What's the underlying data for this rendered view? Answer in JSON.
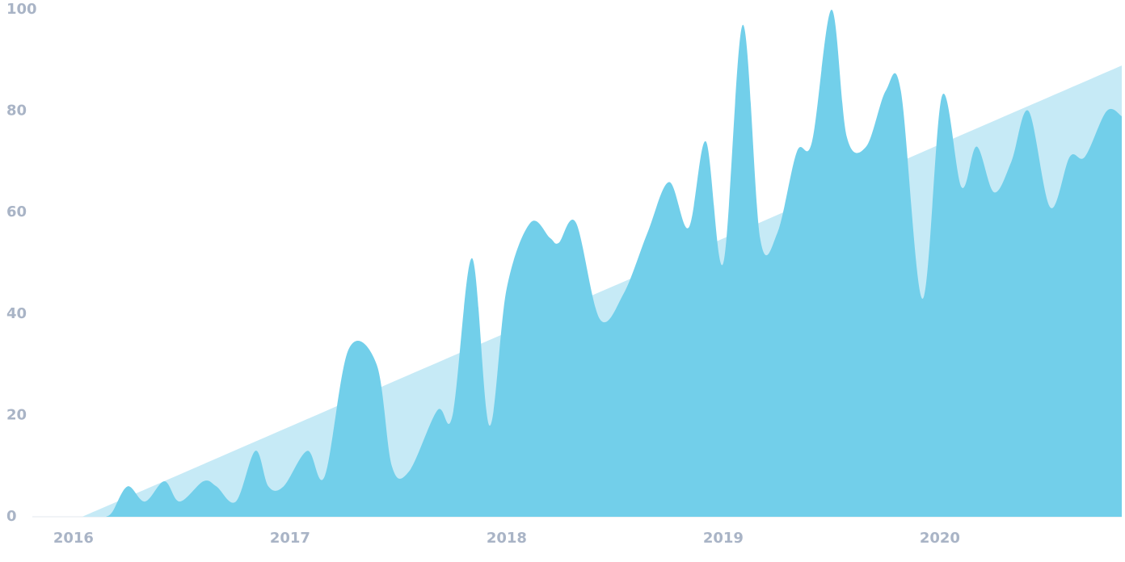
{
  "chart_data": {
    "type": "area",
    "series": [
      {
        "color": "#c6eaf6",
        "x": [
          2016.04,
          2020.84
        ],
        "values": [
          0,
          89
        ]
      },
      {
        "color": "#72cfea",
        "x": [
          2016.15,
          2016.18,
          2016.25,
          2016.33,
          2016.42,
          2016.49,
          2016.6,
          2016.66,
          2016.75,
          2016.84,
          2016.9,
          2016.97,
          2017.08,
          2017.16,
          2017.27,
          2017.4,
          2017.47,
          2017.55,
          2017.68,
          2017.75,
          2017.84,
          2017.92,
          2018.0,
          2018.11,
          2018.2,
          2018.24,
          2018.32,
          2018.43,
          2018.54,
          2018.65,
          2018.75,
          2018.84,
          2018.92,
          2019.0,
          2019.09,
          2019.17,
          2019.25,
          2019.34,
          2019.41,
          2019.5,
          2019.57,
          2019.66,
          2019.75,
          2019.82,
          2019.92,
          2020.01,
          2020.1,
          2020.17,
          2020.25,
          2020.33,
          2020.41,
          2020.51,
          2020.6,
          2020.67,
          2020.77,
          2020.84
        ],
        "values": [
          0,
          1,
          6,
          3,
          7,
          3,
          7,
          6,
          3,
          13,
          6,
          6,
          13,
          8,
          33,
          30,
          10,
          9,
          21,
          20,
          51,
          18,
          45,
          58,
          55,
          54,
          58,
          39,
          44,
          56,
          66,
          57,
          74,
          50,
          97,
          55,
          56,
          72,
          74,
          100,
          75,
          73,
          84,
          84,
          43,
          83,
          65,
          73,
          64,
          70,
          80,
          61,
          71,
          71,
          80,
          79
        ]
      }
    ],
    "xlim": [
      2015.81,
      2020.84
    ],
    "xticks": [
      2016,
      2017,
      2018,
      2019,
      2020
    ],
    "ylim": [
      0,
      100
    ],
    "yticks": [
      0,
      20,
      40,
      60,
      80,
      100
    ]
  }
}
